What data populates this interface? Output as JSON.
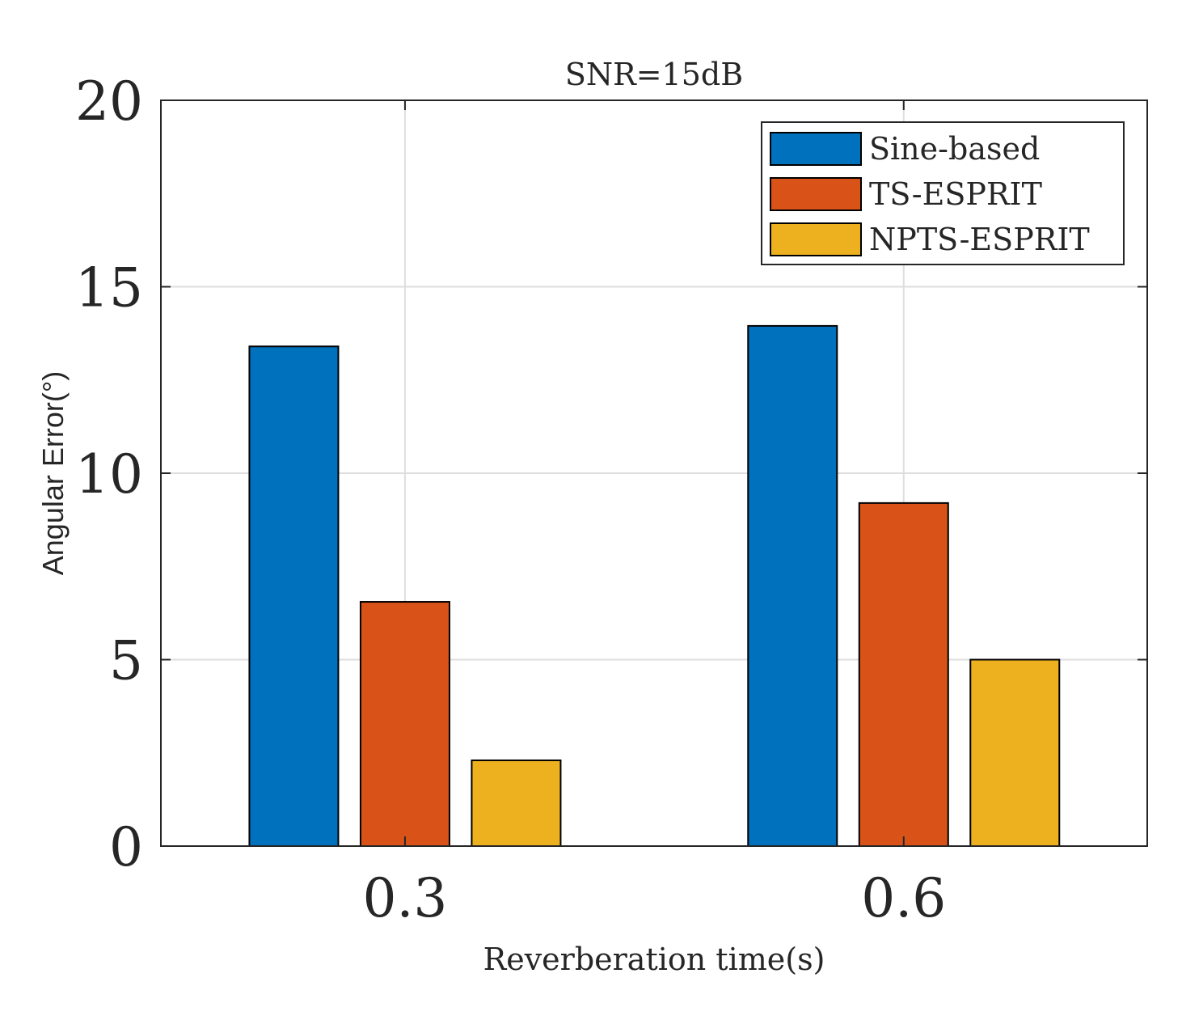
{
  "chart_data": {
    "type": "bar",
    "title": "SNR=15dB",
    "xlabel": "Reverberation time(s)",
    "ylabel": "Angular Error(°)",
    "categories": [
      "0.3",
      "0.6"
    ],
    "ylim": [
      0,
      20
    ],
    "yticks": [
      0,
      5,
      10,
      15,
      20
    ],
    "grid": true,
    "legend_position": "top-right",
    "series": [
      {
        "name": "Sine-based",
        "color": "#0072BD",
        "values": [
          13.4,
          13.95
        ]
      },
      {
        "name": "TS-ESPRIT",
        "color": "#D95319",
        "values": [
          6.55,
          9.2
        ]
      },
      {
        "name": "NPTS-ESPRIT",
        "color": "#EDB120",
        "values": [
          2.3,
          5.0
        ]
      }
    ]
  }
}
